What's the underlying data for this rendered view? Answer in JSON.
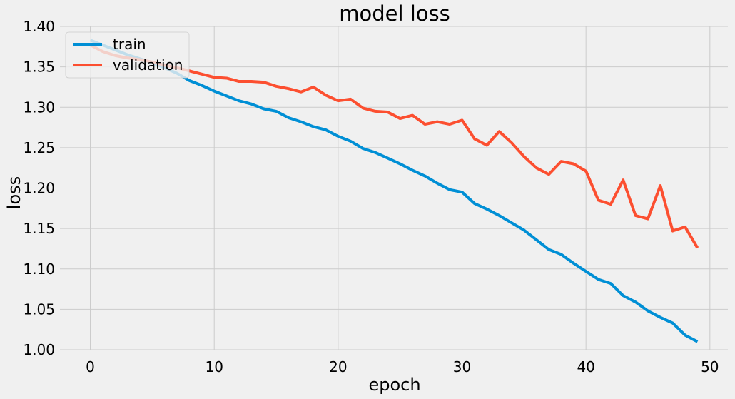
{
  "chart_data": {
    "type": "line",
    "title": "model loss",
    "xlabel": "epoch",
    "ylabel": "loss",
    "xlim": [
      -2.45,
      51.45
    ],
    "ylim": [
      1.0,
      1.4
    ],
    "xticks": [
      0,
      10,
      20,
      30,
      40,
      50
    ],
    "xtick_labels": [
      "0",
      "10",
      "20",
      "30",
      "40",
      "50"
    ],
    "yticks": [
      1.0,
      1.05,
      1.1,
      1.15,
      1.2,
      1.25,
      1.3,
      1.35,
      1.4
    ],
    "ytick_labels": [
      "1.00",
      "1.05",
      "1.10",
      "1.15",
      "1.20",
      "1.25",
      "1.30",
      "1.35",
      "1.40"
    ],
    "grid": true,
    "legend_position": "upper-left",
    "x": [
      0,
      1,
      2,
      3,
      4,
      5,
      6,
      7,
      8,
      9,
      10,
      11,
      12,
      13,
      14,
      15,
      16,
      17,
      18,
      19,
      20,
      21,
      22,
      23,
      24,
      25,
      26,
      27,
      28,
      29,
      30,
      31,
      32,
      33,
      34,
      35,
      36,
      37,
      38,
      39,
      40,
      41,
      42,
      43,
      44,
      45,
      46,
      47,
      48,
      49
    ],
    "series": [
      {
        "name": "train",
        "color": "#008fd5",
        "values": [
          1.383,
          1.377,
          1.371,
          1.365,
          1.36,
          1.355,
          1.349,
          1.342,
          1.333,
          1.327,
          1.32,
          1.314,
          1.308,
          1.304,
          1.298,
          1.295,
          1.287,
          1.282,
          1.276,
          1.272,
          1.264,
          1.258,
          1.249,
          1.244,
          1.237,
          1.23,
          1.222,
          1.215,
          1.206,
          1.198,
          1.195,
          1.181,
          1.174,
          1.166,
          1.157,
          1.148,
          1.136,
          1.124,
          1.118,
          1.107,
          1.097,
          1.087,
          1.082,
          1.067,
          1.059,
          1.048,
          1.04,
          1.033,
          1.018,
          1.01
        ]
      },
      {
        "name": "validation",
        "color": "#fc4f30",
        "values": [
          1.377,
          1.369,
          1.364,
          1.361,
          1.359,
          1.356,
          1.352,
          1.349,
          1.345,
          1.341,
          1.337,
          1.336,
          1.332,
          1.332,
          1.331,
          1.326,
          1.323,
          1.319,
          1.325,
          1.315,
          1.308,
          1.31,
          1.299,
          1.295,
          1.294,
          1.286,
          1.29,
          1.279,
          1.282,
          1.279,
          1.284,
          1.261,
          1.253,
          1.27,
          1.256,
          1.239,
          1.225,
          1.217,
          1.233,
          1.23,
          1.221,
          1.185,
          1.18,
          1.21,
          1.166,
          1.162,
          1.203,
          1.147,
          1.152,
          1.126
        ]
      }
    ]
  }
}
